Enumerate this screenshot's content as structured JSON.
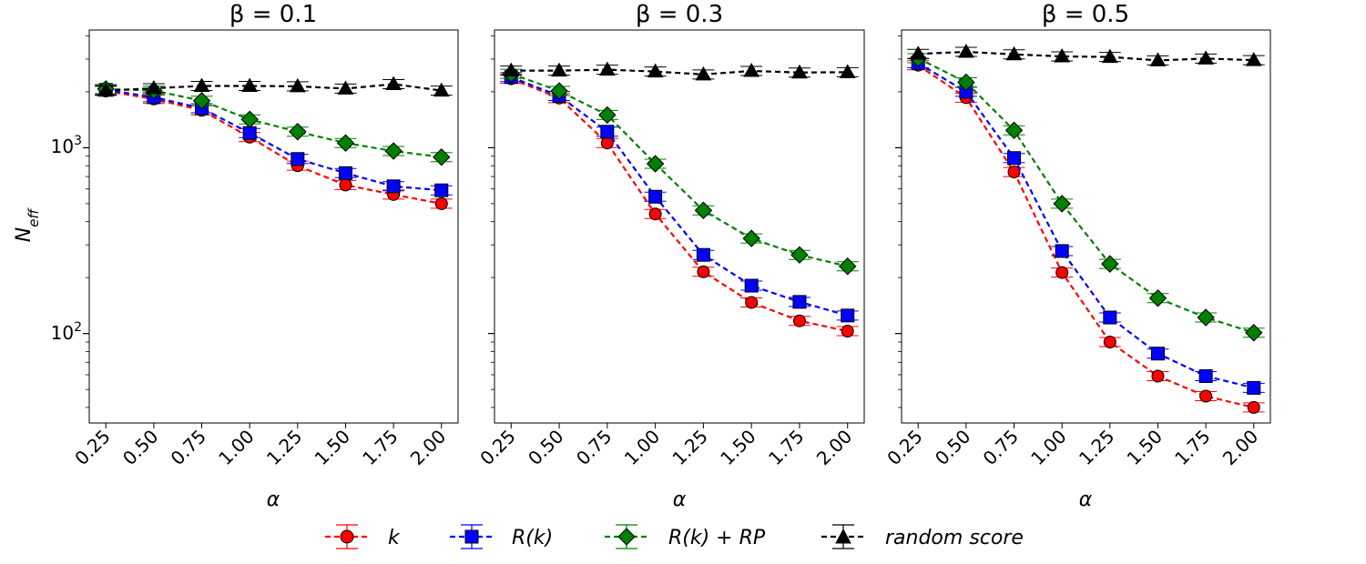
{
  "chart_data": {
    "type": "line",
    "ylabel": "N_eff",
    "ylabel_main": "N",
    "ylabel_sub": "eff",
    "xlabel": "α",
    "yscale": "log",
    "ylim": [
      33,
      4300
    ],
    "ytick_labels": [
      {
        "value": 100,
        "base": "10",
        "exp": "2"
      },
      {
        "value": 1000,
        "base": "10",
        "exp": "3"
      }
    ],
    "x": [
      0.25,
      0.5,
      0.75,
      1.0,
      1.25,
      1.5,
      1.75,
      2.0
    ],
    "xtick_labels": [
      "0.25",
      "0.50",
      "0.75",
      "1.00",
      "1.25",
      "1.50",
      "1.75",
      "2.00"
    ],
    "legend": {
      "placement": "bottom-center",
      "entries": [
        {
          "label": "k",
          "color": "#ff0000",
          "marker": "circle"
        },
        {
          "label": "R(k)",
          "color": "#0000ff",
          "marker": "square"
        },
        {
          "label": "R(k) + RP",
          "color": "#008000",
          "marker": "diamond"
        },
        {
          "label": "random score",
          "color": "#000000",
          "marker": "triangle"
        }
      ]
    },
    "panels": [
      {
        "title": "β = 0.1",
        "series": [
          {
            "name": "k",
            "values": [
              2020,
              1830,
              1590,
              1140,
              800,
              630,
              560,
              500
            ]
          },
          {
            "name": "R(k)",
            "values": [
              2050,
              1870,
              1630,
              1200,
              870,
              730,
              620,
              590
            ]
          },
          {
            "name": "R(k) + RP",
            "values": [
              2070,
              2030,
              1790,
              1420,
              1220,
              1060,
              960,
              890
            ]
          },
          {
            "name": "random score",
            "values": [
              2030,
              2090,
              2150,
              2150,
              2140,
              2080,
              2200,
              2030
            ]
          }
        ]
      },
      {
        "title": "β = 0.3",
        "series": [
          {
            "name": "k",
            "values": [
              2350,
              1850,
              1060,
              440,
              215,
              147,
              117,
              103
            ]
          },
          {
            "name": "R(k)",
            "values": [
              2400,
              1900,
              1220,
              545,
              265,
              181,
              148,
              125
            ]
          },
          {
            "name": "R(k) + RP",
            "values": [
              2500,
              2020,
              1500,
              820,
              460,
              325,
              265,
              230
            ]
          },
          {
            "name": "random score",
            "values": [
              2600,
              2600,
              2630,
              2570,
              2480,
              2590,
              2540,
              2550
            ]
          }
        ]
      },
      {
        "title": "β = 0.5",
        "series": [
          {
            "name": "k",
            "values": [
              2780,
              1860,
              740,
              213,
              90,
              59,
              46,
              40
            ]
          },
          {
            "name": "R(k)",
            "values": [
              2850,
              2000,
              880,
              278,
              122,
              78,
              59,
              51
            ]
          },
          {
            "name": "R(k) + RP",
            "values": [
              3030,
              2250,
              1240,
              500,
              237,
              155,
              122,
              101
            ]
          },
          {
            "name": "random score",
            "values": [
              3200,
              3280,
              3180,
              3100,
              3080,
              2950,
              3020,
              2960
            ]
          }
        ]
      }
    ]
  }
}
